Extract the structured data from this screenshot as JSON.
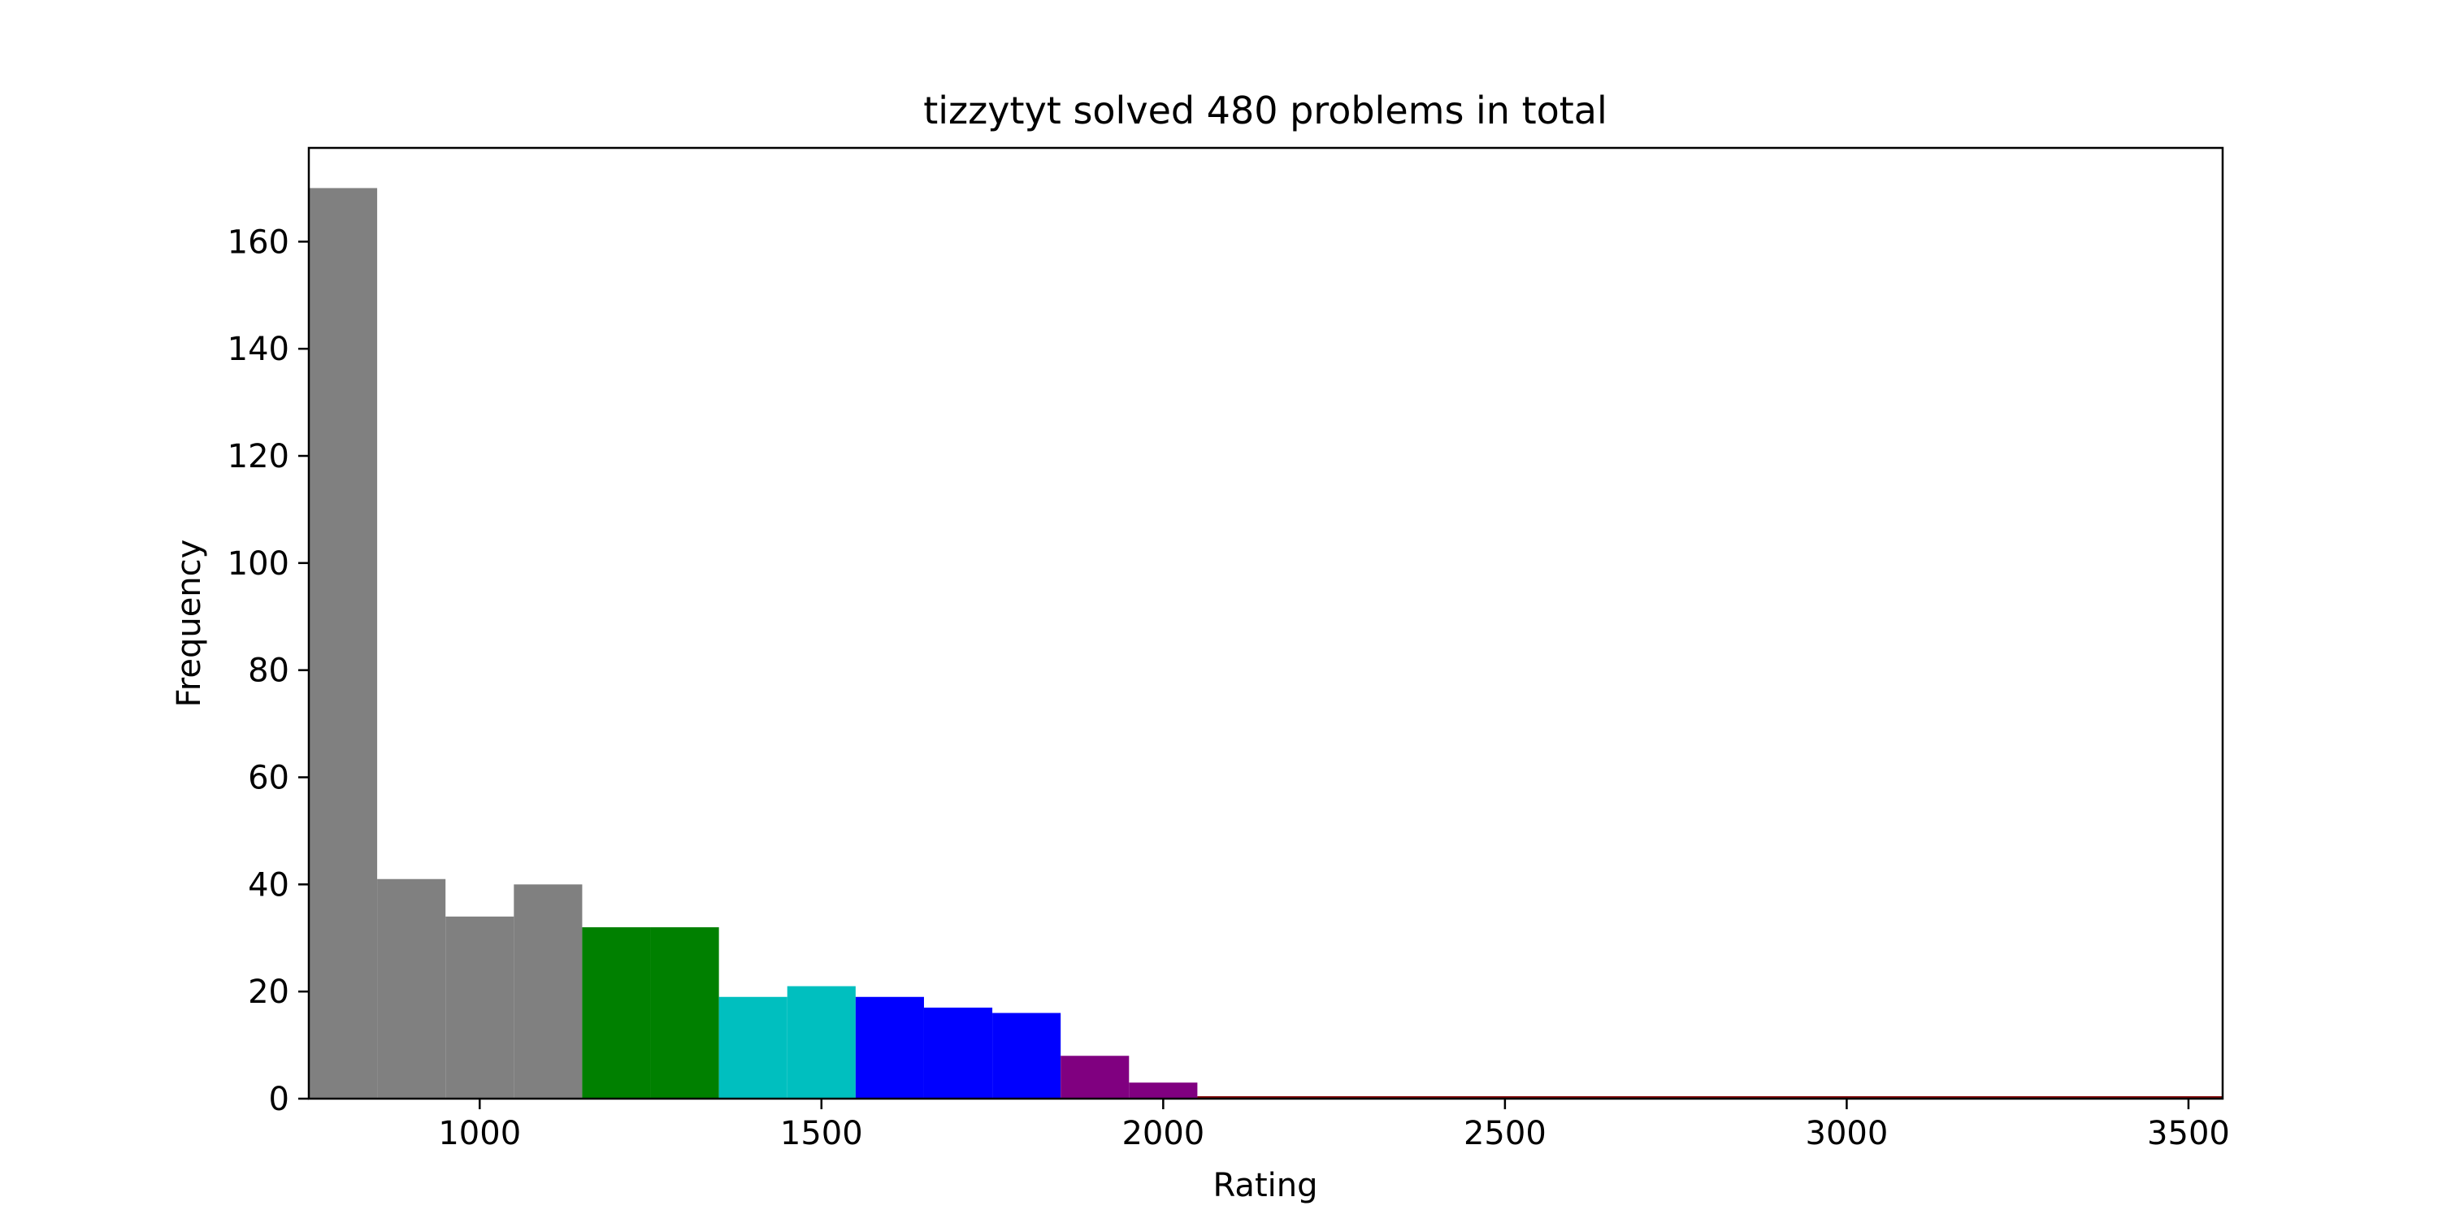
{
  "chart_data": {
    "type": "bar",
    "title": "tizzytyt solved 480 problems in total",
    "xlabel": "Rating",
    "ylabel": "Frequency",
    "xlim": [
      750,
      3550
    ],
    "ylim": [
      0,
      177.5
    ],
    "xticks": [
      1000,
      1500,
      2000,
      2500,
      3000,
      3500
    ],
    "yticks": [
      0,
      20,
      40,
      60,
      80,
      100,
      120,
      140,
      160
    ],
    "bin_width": 100,
    "bins": [
      {
        "start": 750,
        "value": 170,
        "color": "#808080"
      },
      {
        "start": 850,
        "value": 41,
        "color": "#808080"
      },
      {
        "start": 950,
        "value": 34,
        "color": "#808080"
      },
      {
        "start": 1050,
        "value": 40,
        "color": "#808080"
      },
      {
        "start": 1150,
        "value": 32,
        "color": "#008000"
      },
      {
        "start": 1250,
        "value": 32,
        "color": "#008000"
      },
      {
        "start": 1350,
        "value": 19,
        "color": "#00bfbf"
      },
      {
        "start": 1450,
        "value": 21,
        "color": "#00bfbf"
      },
      {
        "start": 1550,
        "value": 19,
        "color": "#0000ff"
      },
      {
        "start": 1650,
        "value": 17,
        "color": "#0000ff"
      },
      {
        "start": 1750,
        "value": 16,
        "color": "#0000ff"
      },
      {
        "start": 1850,
        "value": 8,
        "color": "#800080"
      },
      {
        "start": 1950,
        "value": 3,
        "color": "#800080"
      }
    ],
    "grid": false,
    "baseline_color": "#800000"
  }
}
